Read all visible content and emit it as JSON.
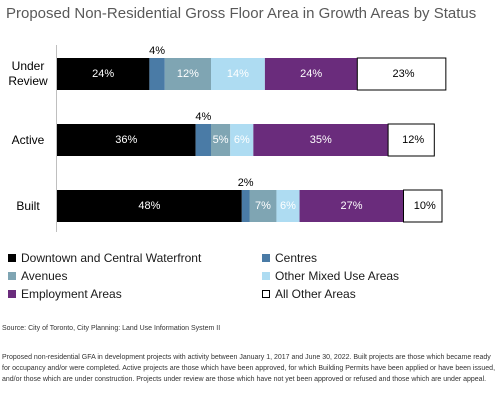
{
  "chart_data": {
    "type": "bar",
    "orientation": "horizontal",
    "stacked": true,
    "percent": true,
    "title": "Proposed Non-Residential Gross Floor Area in Growth Areas by Status",
    "categories": [
      "Under Review",
      "Active",
      "Built"
    ],
    "xlim": [
      0,
      100
    ],
    "grid": false,
    "legend_position": "bottom",
    "series": [
      {
        "name": "Downtown and Central Waterfront",
        "color": "#000000",
        "values": [
          24,
          36,
          48
        ],
        "labels": [
          "24%",
          "36%",
          "48%"
        ]
      },
      {
        "name": "Centres",
        "color": "#4a7ba6",
        "values": [
          4,
          4,
          2
        ],
        "labels": [
          "4%",
          "4%",
          "2%"
        ]
      },
      {
        "name": "Avenues",
        "color": "#7fa5b3",
        "values": [
          12,
          5,
          7
        ],
        "labels": [
          "12%",
          "5%",
          "7%"
        ]
      },
      {
        "name": "Other Mixed Use Areas",
        "color": "#aedcf2",
        "values": [
          14,
          6,
          6
        ],
        "labels": [
          "14%",
          "6%",
          "6%"
        ]
      },
      {
        "name": "Employment Areas",
        "color": "#6a2c7c",
        "values": [
          24,
          35,
          27
        ],
        "labels": [
          "24%",
          "35%",
          "27%"
        ]
      },
      {
        "name": "All Other Areas",
        "color": "#ffffff",
        "values": [
          23,
          12,
          10
        ],
        "labels": [
          "23%",
          "12%",
          "10%"
        ]
      }
    ]
  },
  "source": "Source: City of Toronto, City Planning: Land Use Information System II",
  "footnote": "Proposed non-residential GFA in development projects with activity between January 1, 2017 and June 30, 2022. Built projects are those which became ready for occupancy and/or were completed. Active projects are those which have been approved, for which Building Permits have been applied or have been issued, and/or those which are under construction. Projects under review are those which have not yet been approved or refused and those which are under appeal."
}
